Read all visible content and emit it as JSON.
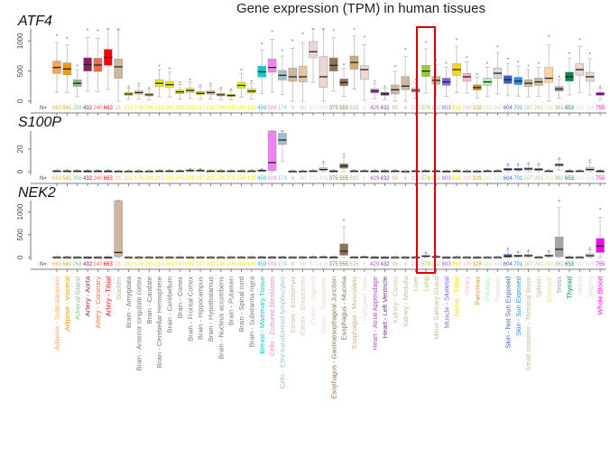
{
  "chart_data": {
    "type": "box",
    "title": "Gene expression (TPM) in human tissues",
    "n_prefix": "N=",
    "tissues": [
      "Adipose - Subcutaneous",
      "Adipose - Visceral",
      "Adrenal Gland",
      "Artery - Aorta",
      "Artery - Coronary",
      "Artery - Tibial",
      "Bladder",
      "Brain - Amygdala",
      "Brain - Anterior cingulate cortex",
      "Brain - Caudate",
      "Brain - Cerebellar Hemisphere",
      "Brain - Cerebellum",
      "Brain - Cortex",
      "Brain - Frontal Cortex",
      "Brain - Hippocampus",
      "Brain - Hypothalamus",
      "Brain - Nucleus accumbens",
      "Brain - Putamen",
      "Brain - Spinal cord",
      "Brain - Substantia nigra",
      "Breast - Mammary Tissue",
      "Cells - Cultured fibroblasts",
      "Cells - EBV-transformed lymphocytes",
      "Cervix - Ectocervix",
      "Cervix - Endocervix",
      "Colon - Sigmoid",
      "Colon - Transverse",
      "Esophagus - Gastroesophageal Junction",
      "Esophagus - Mucosa",
      "Esophagus - Muscularis",
      "Fallopian Tube",
      "Heart - Atrial Appendage",
      "Heart - Left Ventricle",
      "Kidney - Cortex",
      "Kidney - Medulla",
      "Liver",
      "Lung",
      "Minor Salivary Gland",
      "Muscle - Skeletal",
      "Nerve - Tibial",
      "Ovary",
      "Pancreas",
      "Pituitary",
      "Prostate",
      "Skin - Not Sun Exposed",
      "Skin - Sun Exposed",
      "Small Intestine - Terminal Ileum",
      "Spleen",
      "Stomach",
      "Testis",
      "Thyroid",
      "Uterus",
      "Vagina",
      "Whole Blood"
    ],
    "n": [
      "663",
      "541",
      "258",
      "432",
      "240",
      "663",
      "21",
      "152",
      "176",
      "246",
      "215",
      "241",
      "255",
      "209",
      "197",
      "202",
      "246",
      "205",
      "159",
      "139",
      "459",
      "504",
      "174",
      "9",
      "90",
      "373",
      "406",
      "375",
      "555",
      "515",
      "9",
      "429",
      "432",
      "85",
      "4",
      "220",
      "578",
      "162",
      "803",
      "616",
      "190",
      "328",
      "283",
      "349",
      "604",
      "701",
      "187",
      "241",
      "356",
      "361",
      "653",
      "142",
      "156",
      "755"
    ],
    "colors": [
      "#FFA54F",
      "#EE9A00",
      "#8FBC8F",
      "#8B1C62",
      "#EE6A50",
      "#FF0000",
      "#CDB79E",
      "#EEEE00",
      "#EEEE00",
      "#EEEE00",
      "#EEEE00",
      "#EEEE00",
      "#EEEE00",
      "#EEEE00",
      "#EEEE00",
      "#EEEE00",
      "#EEEE00",
      "#EEEE00",
      "#EEEE00",
      "#EEEE00",
      "#00CDCD",
      "#EE82EE",
      "#9AC0CD",
      "#CDB79E",
      "#E8C39E",
      "#EED5D2",
      "#EED5D2",
      "#8B7355",
      "#8B7355",
      "#CDAA7D",
      "#EED5D2",
      "#B452CD",
      "#7A378B",
      "#CDB79E",
      "#CDB79E",
      "#CDB79E",
      "#9ACD32",
      "#CDB79E",
      "#7A67EE",
      "#FFD700",
      "#FFB6C1",
      "#CD9B1D",
      "#B4EEB4",
      "#D9D9D9",
      "#3A5FCD",
      "#1E90FF",
      "#CDB79E",
      "#CDB79E",
      "#FFD39B",
      "#A6A6A6",
      "#008B45",
      "#EED5D2",
      "#EED5D2",
      "#FF00FF"
    ],
    "highlight": {
      "tissue": "Lung",
      "color": "#E00000"
    },
    "panels": [
      {
        "gene": "ATF4",
        "ylim": [
          0,
          1200
        ],
        "yticks": [
          "0",
          "500",
          "1000"
        ],
        "median": [
          560,
          535,
          298,
          607,
          600,
          726,
          571,
          119,
          143,
          107,
          298,
          274,
          155,
          178,
          131,
          143,
          107,
          95,
          262,
          167,
          488,
          560,
          429,
          405,
          405,
          821,
          405,
          595,
          310,
          643,
          524,
          167,
          119,
          190,
          250,
          178,
          500,
          345,
          321,
          524,
          405,
          226,
          321,
          464,
          357,
          333,
          298,
          321,
          381,
          202,
          405,
          524,
          405,
          119
        ],
        "iqr": {
          "6": [
            380,
            700
          ],
          "21": [
            480,
            700
          ],
          "23": [
            330,
            550
          ],
          "24": [
            320,
            580
          ],
          "25": [
            720,
            990
          ],
          "26": [
            230,
            740
          ],
          "27": [
            500,
            720
          ],
          "29": [
            530,
            750
          ],
          "30": [
            360,
            590
          ],
          "33": [
            120,
            270
          ],
          "34": [
            190,
            410
          ],
          "40": [
            330,
            460
          ],
          "48": [
            310,
            560
          ],
          "52": [
            330,
            480
          ]
        }
      },
      {
        "gene": "S100P",
        "ylim": [
          0,
          36
        ],
        "yticks": [
          "0",
          "20"
        ],
        "median": [
          0.5,
          0.5,
          0.5,
          0.5,
          0.5,
          0.5,
          0.3,
          0.3,
          0.3,
          0.3,
          0.5,
          0.5,
          0.5,
          1,
          1,
          0.5,
          0.5,
          0.5,
          0.5,
          0.5,
          1,
          8,
          28,
          0.3,
          0.3,
          0.5,
          2,
          0.5,
          5,
          0.5,
          0.5,
          0.5,
          0.5,
          0.5,
          0.2,
          0.5,
          0.5,
          0.5,
          0.3,
          0.5,
          0.3,
          0.3,
          0.5,
          0.5,
          2,
          2,
          2.5,
          2,
          0.5,
          6,
          0.5,
          0.5,
          2,
          0.5
        ],
        "iqr": {
          "21": [
            1,
            36
          ],
          "22": [
            24,
            34
          ],
          "26": [
            1,
            3.5
          ],
          "28": [
            3,
            7
          ],
          "44": [
            1.2,
            3
          ],
          "45": [
            1.2,
            3
          ],
          "46": [
            1.5,
            3.5
          ],
          "47": [
            1,
            3
          ],
          "52": [
            1,
            4
          ]
        }
      },
      {
        "gene": "NEK2",
        "ylim": [
          0,
          1250
        ],
        "yticks": [
          "0",
          "500",
          "1000"
        ],
        "median": [
          3,
          3,
          2,
          2,
          2,
          3,
          110,
          2,
          2,
          2,
          2,
          2,
          2,
          2,
          2,
          2,
          2,
          2,
          2,
          2,
          4,
          3,
          3,
          2,
          3,
          5,
          8,
          5,
          140,
          4,
          8,
          3,
          2,
          2,
          2,
          3,
          30,
          15,
          2,
          3,
          2,
          2,
          2,
          3,
          25,
          35,
          40,
          5,
          40,
          180,
          3,
          3,
          40,
          250
        ],
        "iqr": {
          "6": [
            20,
            1250
          ],
          "28": [
            50,
            300
          ],
          "36": [
            15,
            45
          ],
          "44": [
            10,
            70
          ],
          "45": [
            20,
            55
          ],
          "46": [
            20,
            65
          ],
          "48": [
            20,
            60
          ],
          "49": [
            20,
            450
          ],
          "52": [
            20,
            80
          ],
          "53": [
            110,
            420
          ]
        }
      }
    ]
  }
}
